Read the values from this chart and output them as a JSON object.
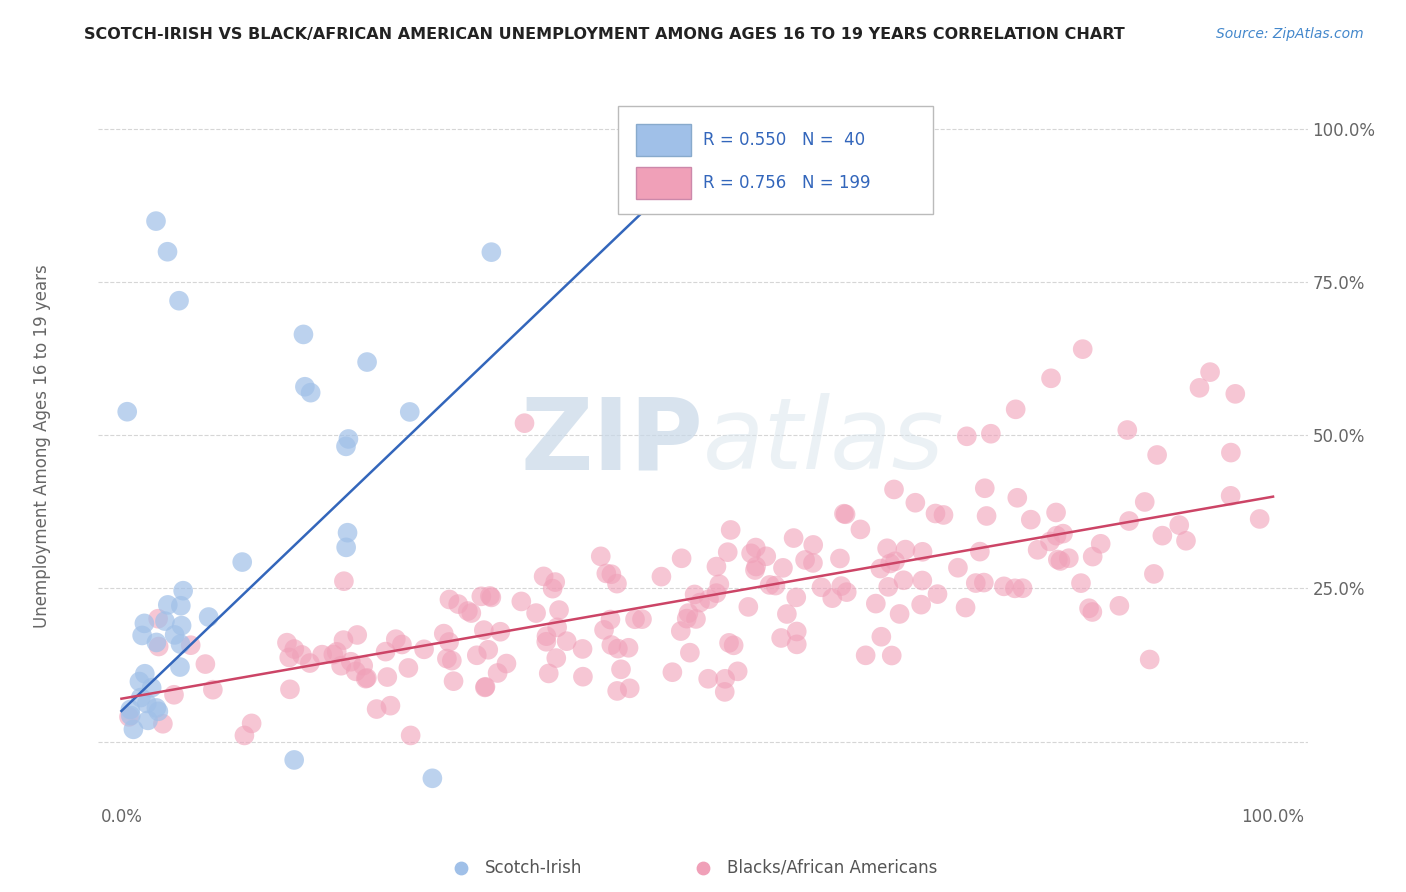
{
  "title": "SCOTCH-IRISH VS BLACK/AFRICAN AMERICAN UNEMPLOYMENT AMONG AGES 16 TO 19 YEARS CORRELATION CHART",
  "source": "Source: ZipAtlas.com",
  "ylabel": "Unemployment Among Ages 16 to 19 years",
  "watermark_zip": "ZIP",
  "watermark_atlas": "atlas",
  "blue_color": "#a0c0e8",
  "pink_color": "#f0a0b8",
  "blue_line_color": "#3366bb",
  "pink_line_color": "#cc4466",
  "grid_color": "#cccccc",
  "title_color": "#222222",
  "source_color": "#4488cc",
  "legend_r_color": "#3366bb",
  "legend_n_color": "#3366bb",
  "R_blue": "0.550",
  "N_blue": "40",
  "R_pink": "0.756",
  "N_pink": "199",
  "label_blue": "Scotch-Irish",
  "label_pink": "Blacks/African Americans"
}
